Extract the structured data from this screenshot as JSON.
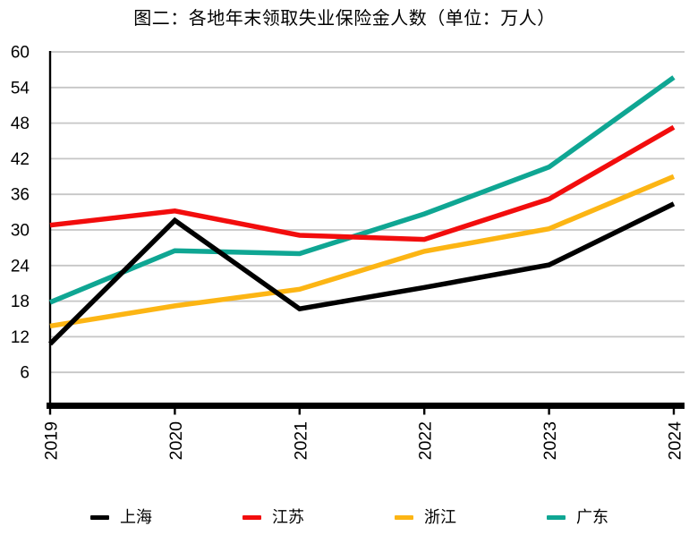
{
  "title": "图二：各地年末领取失业保险金人数（单位：万人）",
  "chart_data": {
    "type": "line",
    "title": "图二：各地年末领取失业保险金人数（单位：万人）",
    "unit": "万人",
    "categories": [
      "2019",
      "2020",
      "2021",
      "2022",
      "2023",
      "2024"
    ],
    "series": [
      {
        "id": "shanghai",
        "name": "上海",
        "color": "#000000",
        "values": [
          10.8,
          31.6,
          16.7,
          20.3,
          24.1,
          34.4
        ]
      },
      {
        "id": "jiangsu",
        "name": "江苏",
        "color": "#f20d0d",
        "values": [
          30.8,
          33.2,
          29.1,
          28.4,
          35.2,
          47.3
        ]
      },
      {
        "id": "zhejiang",
        "name": "浙江",
        "color": "#fcb514",
        "values": [
          13.8,
          17.2,
          20.0,
          26.4,
          30.2,
          39.0
        ]
      },
      {
        "id": "guangdong",
        "name": "广东",
        "color": "#0fa693",
        "values": [
          17.8,
          26.5,
          26.0,
          32.7,
          40.6,
          55.7
        ]
      }
    ],
    "ylim": [
      0,
      60
    ],
    "yticks": [
      60,
      54,
      48,
      42,
      36,
      30,
      24,
      18,
      12,
      6
    ],
    "grid": "horizontal",
    "gridline_color": "#c6c6c6",
    "axis_color": "#000000",
    "legend_position": "bottom"
  }
}
